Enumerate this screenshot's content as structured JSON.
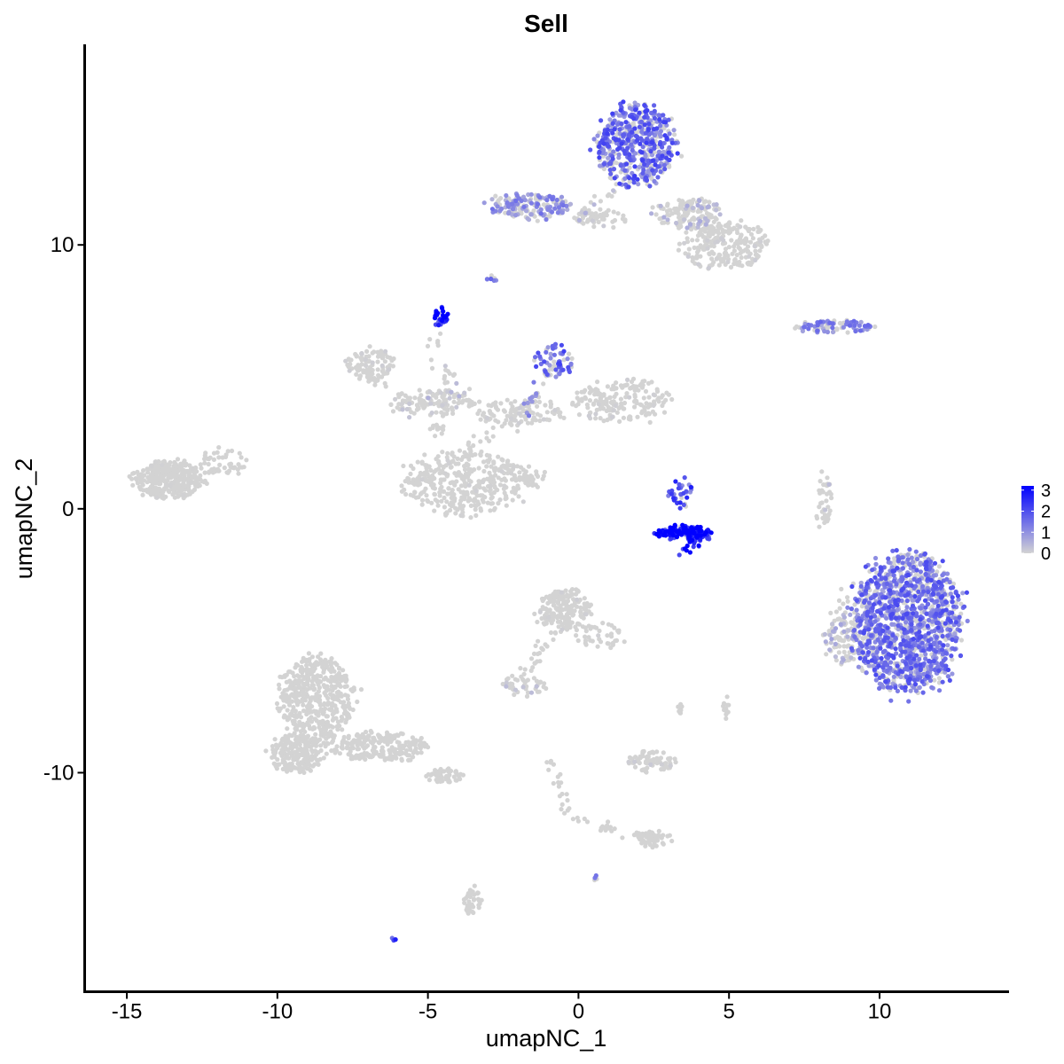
{
  "chart_data": {
    "type": "scatter",
    "title": "Sell",
    "xlabel": "umapNC_1",
    "ylabel": "umapNC_2",
    "xlim": [
      -16.4,
      14.3
    ],
    "ylim": [
      -18.3,
      17.6
    ],
    "x_ticks": [
      -15,
      -10,
      -5,
      0,
      5,
      10
    ],
    "x_tick_labels": [
      "-15",
      "-10",
      "-5",
      "0",
      "5",
      "10"
    ],
    "y_ticks": [
      -10,
      0,
      10
    ],
    "y_tick_labels": [
      "-10",
      "0",
      "10"
    ],
    "grid": false,
    "legend": {
      "position": "right",
      "type": "colorbar",
      "range": [
        0,
        3.2
      ],
      "ticks": [
        0,
        1,
        2,
        3
      ],
      "tick_labels": [
        "0",
        "1",
        "2",
        "3"
      ],
      "colors": [
        "#d3d3d3",
        "#0000ff"
      ]
    },
    "point_color_low": "#d3d3d3",
    "point_color_high": "#0000ff",
    "clusters": [
      {
        "cx": 1.9,
        "cy": 13.8,
        "rx": 1.3,
        "ry": 1.5,
        "n": 520,
        "expr": 1.2
      },
      {
        "cx": 3.6,
        "cy": 11.2,
        "rx": 1.1,
        "ry": 0.6,
        "n": 140,
        "expr": 0.35
      },
      {
        "cx": 4.8,
        "cy": 10.0,
        "rx": 1.4,
        "ry": 0.9,
        "n": 230,
        "expr": 0.06
      },
      {
        "cx": -1.6,
        "cy": 11.5,
        "rx": 1.4,
        "ry": 0.45,
        "n": 150,
        "expr": 0.8
      },
      {
        "cx": 0.7,
        "cy": 11.0,
        "rx": 1.0,
        "ry": 0.35,
        "n": 50,
        "expr": 0.1
      },
      {
        "cx": -4.6,
        "cy": 7.3,
        "rx": 0.25,
        "ry": 0.35,
        "n": 30,
        "expr": 2.3
      },
      {
        "cx": -2.9,
        "cy": 8.7,
        "rx": 0.2,
        "ry": 0.15,
        "n": 8,
        "expr": 1.0
      },
      {
        "cx": 8.5,
        "cy": 6.9,
        "rx": 1.3,
        "ry": 0.25,
        "n": 90,
        "expr": 0.9
      },
      {
        "cx": -6.9,
        "cy": 5.5,
        "rx": 0.8,
        "ry": 0.6,
        "n": 90,
        "expr": 0.05
      },
      {
        "cx": -4.7,
        "cy": 4.0,
        "rx": 1.5,
        "ry": 0.5,
        "n": 100,
        "expr": 0.1
      },
      {
        "cx": -0.8,
        "cy": 5.6,
        "rx": 0.7,
        "ry": 0.6,
        "n": 60,
        "expr": 1.2
      },
      {
        "cx": 1.4,
        "cy": 4.1,
        "rx": 1.6,
        "ry": 0.8,
        "n": 190,
        "expr": 0.05
      },
      {
        "cx": -2.0,
        "cy": 3.6,
        "rx": 1.4,
        "ry": 0.5,
        "n": 100,
        "expr": 0.05
      },
      {
        "cx": -3.8,
        "cy": 1.0,
        "rx": 2.0,
        "ry": 1.2,
        "n": 360,
        "expr": 0.03
      },
      {
        "cx": -13.6,
        "cy": 1.1,
        "rx": 1.2,
        "ry": 0.7,
        "n": 320,
        "expr": 0.02
      },
      {
        "cx": -11.8,
        "cy": 1.8,
        "rx": 0.8,
        "ry": 0.5,
        "n": 50,
        "expr": 0.0
      },
      {
        "cx": -2.0,
        "cy": 1.3,
        "rx": 1.0,
        "ry": 0.4,
        "n": 20,
        "expr": 0.0
      },
      {
        "cx": 3.5,
        "cy": -0.9,
        "rx": 0.9,
        "ry": 0.25,
        "n": 140,
        "expr": 2.4
      },
      {
        "cx": 3.4,
        "cy": 0.6,
        "rx": 0.4,
        "ry": 0.6,
        "n": 35,
        "expr": 1.5
      },
      {
        "cx": 8.2,
        "cy": 0.3,
        "rx": 0.2,
        "ry": 0.8,
        "n": 25,
        "expr": 0.2
      },
      {
        "cx": 10.9,
        "cy": -4.3,
        "rx": 1.8,
        "ry": 2.6,
        "n": 1400,
        "expr": 1.1
      },
      {
        "cx": 8.8,
        "cy": -5.0,
        "rx": 0.6,
        "ry": 0.9,
        "n": 80,
        "expr": 0.4
      },
      {
        "cx": -0.5,
        "cy": -3.8,
        "rx": 0.9,
        "ry": 0.8,
        "n": 170,
        "expr": 0.05
      },
      {
        "cx": 0.8,
        "cy": -4.8,
        "rx": 0.8,
        "ry": 0.5,
        "n": 40,
        "expr": 0.05
      },
      {
        "cx": -1.8,
        "cy": -6.7,
        "rx": 0.8,
        "ry": 0.4,
        "n": 40,
        "expr": 0.2
      },
      {
        "cx": -8.7,
        "cy": -7.2,
        "rx": 1.2,
        "ry": 1.6,
        "n": 480,
        "expr": 0.0
      },
      {
        "cx": -9.4,
        "cy": -9.3,
        "rx": 0.9,
        "ry": 0.7,
        "n": 200,
        "expr": 0.0
      },
      {
        "cx": -6.6,
        "cy": -9.0,
        "rx": 1.6,
        "ry": 0.55,
        "n": 220,
        "expr": 0.0
      },
      {
        "cx": -4.4,
        "cy": -10.1,
        "rx": 0.6,
        "ry": 0.3,
        "n": 50,
        "expr": 0.0
      },
      {
        "cx": 2.4,
        "cy": -9.6,
        "rx": 0.8,
        "ry": 0.4,
        "n": 70,
        "expr": 0.1
      },
      {
        "cx": 4.9,
        "cy": -7.5,
        "rx": 0.1,
        "ry": 0.4,
        "n": 15,
        "expr": 0.05
      },
      {
        "cx": 3.4,
        "cy": -7.6,
        "rx": 0.1,
        "ry": 0.2,
        "n": 8,
        "expr": 0.05
      },
      {
        "cx": 2.5,
        "cy": -12.5,
        "rx": 0.6,
        "ry": 0.3,
        "n": 50,
        "expr": 0.0
      },
      {
        "cx": -3.5,
        "cy": -14.9,
        "rx": 0.3,
        "ry": 0.6,
        "n": 40,
        "expr": 0.0
      },
      {
        "cx": 0.6,
        "cy": -14.0,
        "rx": 0.1,
        "ry": 0.1,
        "n": 4,
        "expr": 0.8
      },
      {
        "cx": -6.1,
        "cy": -16.3,
        "rx": 0.1,
        "ry": 0.1,
        "n": 4,
        "expr": 1.5
      }
    ],
    "trails": [
      {
        "from": [
          -4.8,
          2.5
        ],
        "to": [
          -4.3,
          5.5
        ],
        "n": 35,
        "expr": 0.1
      },
      {
        "from": [
          -4.0,
          2.0
        ],
        "to": [
          -1.5,
          4.0
        ],
        "n": 25,
        "expr": 0.05
      },
      {
        "from": [
          -2.0,
          1.3
        ],
        "to": [
          -1.3,
          0.9
        ],
        "n": 20,
        "expr": 0.0
      },
      {
        "from": [
          -5.8,
          3.8
        ],
        "to": [
          -3.5,
          4.5
        ],
        "n": 25,
        "expr": 0.3
      },
      {
        "from": [
          -2.2,
          3.0
        ],
        "to": [
          -0.8,
          5.4
        ],
        "n": 25,
        "expr": 0.8
      },
      {
        "from": [
          -7.8,
          5.6
        ],
        "to": [
          -5.8,
          4.2
        ],
        "n": 20,
        "expr": 0.05
      },
      {
        "from": [
          -3.0,
          11.5
        ],
        "to": [
          -1.0,
          11.0
        ],
        "n": 25,
        "expr": 0.7
      },
      {
        "from": [
          0.0,
          11.0
        ],
        "to": [
          1.6,
          12.5
        ],
        "n": 25,
        "expr": 0.3
      },
      {
        "from": [
          -0.8,
          -4.5
        ],
        "to": [
          -1.8,
          -6.5
        ],
        "n": 25,
        "expr": 0.0
      },
      {
        "from": [
          -1.2,
          -4.0
        ],
        "to": [
          -0.2,
          -4.4
        ],
        "n": 20,
        "expr": 0.05
      },
      {
        "from": [
          -1.0,
          -9.5
        ],
        "to": [
          -0.3,
          -11.5
        ],
        "n": 20,
        "expr": 0.05
      },
      {
        "from": [
          -0.3,
          -11.8
        ],
        "to": [
          2.3,
          -12.4
        ],
        "n": 25,
        "expr": 0.0
      },
      {
        "from": [
          8.2,
          1.3
        ],
        "to": [
          7.9,
          -0.6
        ],
        "n": 15,
        "expr": 0.1
      },
      {
        "from": [
          9.0,
          -2.8
        ],
        "to": [
          8.3,
          -5.0
        ],
        "n": 20,
        "expr": 0.3
      },
      {
        "from": [
          3.4,
          -1.6
        ],
        "to": [
          4.3,
          -0.9
        ],
        "n": 25,
        "expr": 2.6
      },
      {
        "from": [
          -5.0,
          5.3
        ],
        "to": [
          -4.5,
          7.5
        ],
        "n": 10,
        "expr": 0.3
      }
    ]
  }
}
